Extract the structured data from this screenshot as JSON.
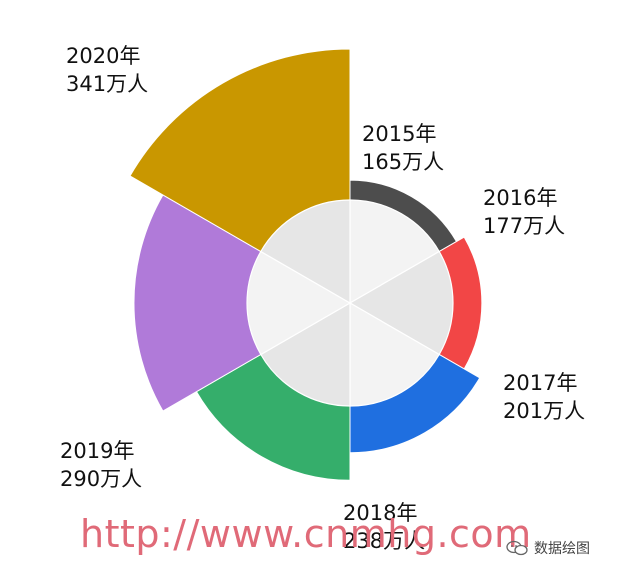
{
  "chart_data": {
    "type": "rose",
    "unit": "万人",
    "categories": [
      "2015年",
      "2016年",
      "2017年",
      "2018年",
      "2019年",
      "2020年"
    ],
    "values": [
      165,
      177,
      201,
      238,
      290,
      341
    ],
    "value_labels": [
      "165万人",
      "177万人",
      "201万人",
      "238万人",
      "290万人",
      "341万人"
    ],
    "colors": [
      "#4d4d4d",
      "#f24646",
      "#1f6fe0",
      "#35ae6b",
      "#b07ad9",
      "#c99700"
    ],
    "inner_colors": [
      "#f3f3f3",
      "#e6e6e6",
      "#f3f3f3",
      "#e6e6e6",
      "#f3f3f3",
      "#e6e6e6"
    ],
    "title": "",
    "legend": "none"
  },
  "watermark": {
    "text": "http://www.cnmhg.com"
  },
  "brand": {
    "icon": "wechat-icon",
    "text": "数据绘图"
  }
}
